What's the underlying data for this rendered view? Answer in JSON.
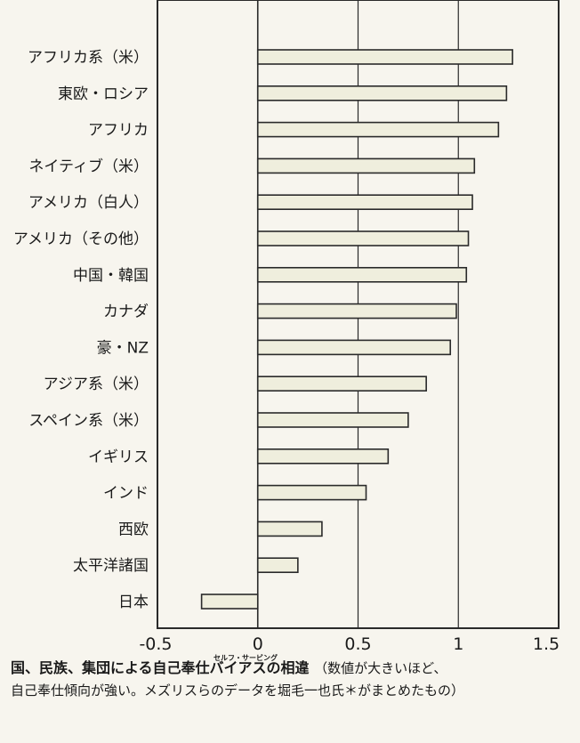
{
  "chart_data": {
    "type": "bar",
    "orientation": "horizontal",
    "categories": [
      "アフリカ系（米）",
      "東欧・ロシア",
      "アフリカ",
      "ネイティブ（米）",
      "アメリカ（白人）",
      "アメリカ（その他）",
      "中国・韓国",
      "カナダ",
      "豪・NZ",
      "アジア系（米）",
      "スペイン系（米）",
      "イギリス",
      "インド",
      "西欧",
      "太平洋諸国",
      "日本"
    ],
    "values": [
      1.27,
      1.24,
      1.2,
      1.08,
      1.07,
      1.05,
      1.04,
      0.99,
      0.96,
      0.84,
      0.75,
      0.65,
      0.54,
      0.32,
      0.2,
      -0.28
    ],
    "xlim": [
      -0.5,
      1.5
    ],
    "xticks": [
      "-0.5",
      "0",
      "0.5",
      "1",
      "1.5"
    ],
    "grid": "vertical",
    "colors": {
      "bar_fill": "#efeedd",
      "bar_stroke": "#2a2a2a",
      "grid": "#2a2a2a",
      "background": "#f7f5ee"
    }
  },
  "caption": {
    "title": "国、民族、集団による自己奉仕バイアスの相違",
    "ruby": "セルフ・サービング",
    "note1": "（数値が大きいほど、",
    "line2": "自己奉仕傾向が強い。メズリスらのデータを堀毛一也氏＊がまとめたもの）"
  }
}
